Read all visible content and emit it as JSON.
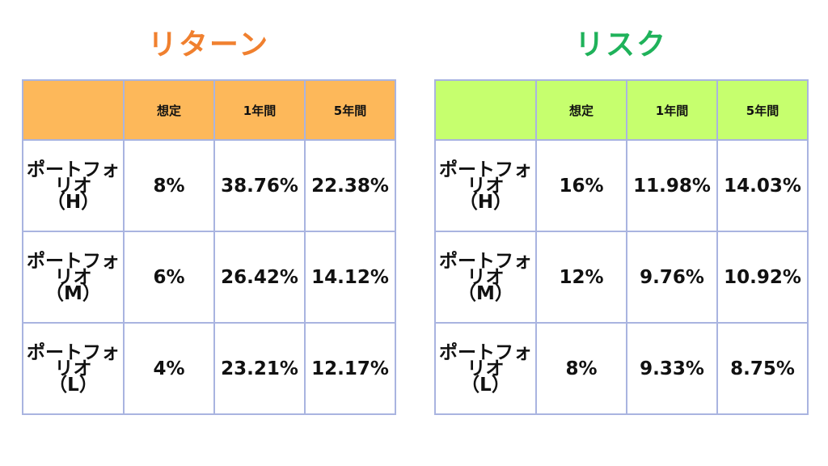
{
  "return": {
    "title": "リターン",
    "header": [
      "想定",
      "1年間",
      "5年間"
    ],
    "rows": [
      {
        "name": "ポートフォリオ",
        "tag": "（H）",
        "cells": [
          "8%",
          "38.76%",
          "22.38%"
        ]
      },
      {
        "name": "ポートフォリオ",
        "tag": "（M）",
        "cells": [
          "6%",
          "26.42%",
          "14.12%"
        ]
      },
      {
        "name": "ポートフォリオ",
        "tag": "（L）",
        "cells": [
          "4%",
          "23.21%",
          "12.17%"
        ]
      }
    ]
  },
  "risk": {
    "title": "リスク",
    "header": [
      "想定",
      "1年間",
      "5年間"
    ],
    "rows": [
      {
        "name": "ポートフォリオ",
        "tag": "（H）",
        "cells": [
          "16%",
          "11.98%",
          "14.03%"
        ]
      },
      {
        "name": "ポートフォリオ",
        "tag": "（M）",
        "cells": [
          "12%",
          "9.76%",
          "10.92%"
        ]
      },
      {
        "name": "ポートフォリオ",
        "tag": "（L）",
        "cells": [
          "8%",
          "9.33%",
          "8.75%"
        ]
      }
    ]
  }
}
